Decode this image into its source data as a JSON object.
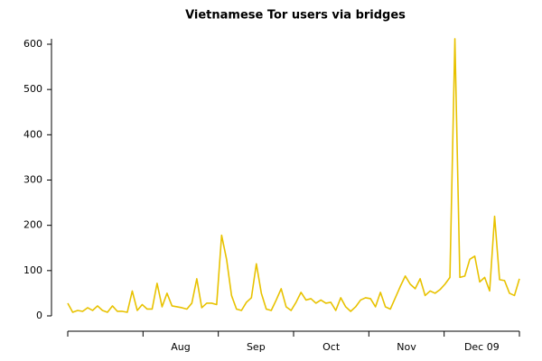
{
  "chart_data": {
    "type": "line",
    "title": "Vietnamese Tor users via bridges",
    "xlim": [
      0,
      6
    ],
    "xticks": [
      {
        "value": 1.5,
        "label": "Aug"
      },
      {
        "value": 2.5,
        "label": "Sep"
      },
      {
        "value": 3.5,
        "label": "Oct"
      },
      {
        "value": 4.5,
        "label": "Nov"
      },
      {
        "value": 5.5,
        "label": "Dec 09"
      }
    ],
    "ylim": [
      0,
      600
    ],
    "yticks": [
      0,
      100,
      200,
      300,
      400,
      500,
      600
    ],
    "series": [
      {
        "color": "#e8c200",
        "values": [
          28,
          8,
          12,
          10,
          18,
          12,
          22,
          12,
          8,
          22,
          10,
          10,
          8,
          55,
          12,
          25,
          15,
          15,
          72,
          20,
          50,
          22,
          20,
          18,
          15,
          28,
          82,
          18,
          28,
          28,
          25,
          178,
          125,
          45,
          15,
          12,
          30,
          40,
          115,
          50,
          15,
          12,
          35,
          60,
          20,
          12,
          30,
          52,
          35,
          38,
          28,
          35,
          28,
          30,
          12,
          40,
          20,
          10,
          20,
          35,
          40,
          38,
          20,
          52,
          20,
          15,
          40,
          65,
          88,
          70,
          60,
          82,
          45,
          55,
          50,
          58,
          70,
          85,
          612,
          85,
          88,
          125,
          132,
          75,
          85,
          55,
          220,
          80,
          78,
          50,
          45,
          82
        ]
      }
    ]
  }
}
